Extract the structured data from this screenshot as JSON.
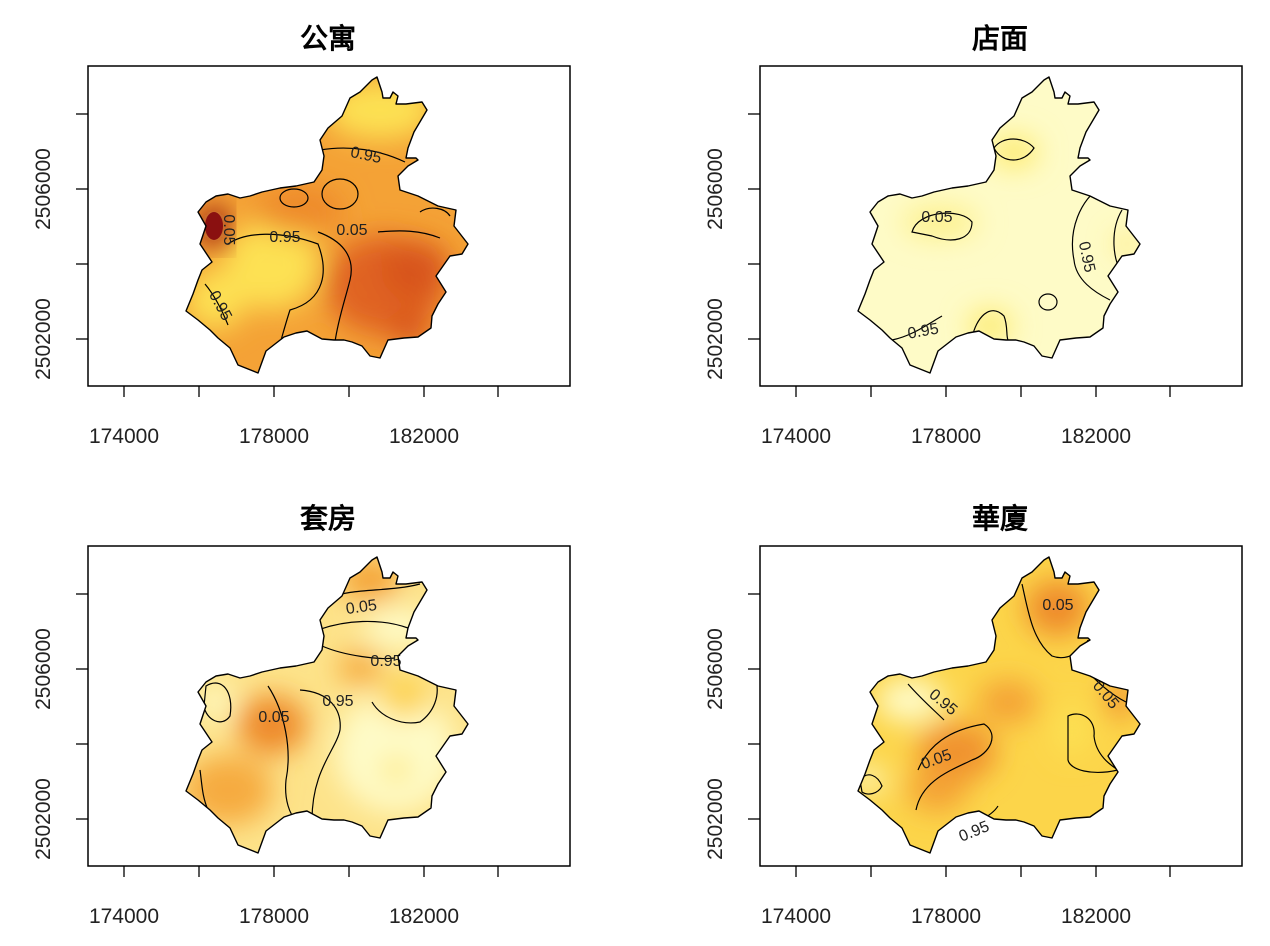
{
  "figure": {
    "panels": [
      {
        "id": "apartment",
        "title": "公寓",
        "x_ticks": [
          "174000",
          "178000",
          "182000"
        ],
        "y_ticks": [
          "2502000",
          "2506000"
        ],
        "base_color": "#f4a236",
        "hotspot_colors": [
          "#fde152",
          "#ee8a2a",
          "#e06324",
          "#d8541f",
          "#8a1010"
        ],
        "contour_labels": [
          "0.95",
          "0.05",
          "0.95",
          "0.05",
          "0.95"
        ]
      },
      {
        "id": "storefront",
        "title": "店面",
        "x_ticks": [
          "174000",
          "178000",
          "182000"
        ],
        "y_ticks": [
          "2502000",
          "2506000"
        ],
        "base_color": "#fefbc7",
        "hotspot_colors": [
          "#fdea6a",
          "#fdf08a",
          "#fdea6a",
          "#fde152"
        ],
        "contour_labels": [
          "0.05",
          "0.95",
          "0.95"
        ]
      },
      {
        "id": "suite",
        "title": "套房",
        "x_ticks": [
          "174000",
          "178000",
          "182000"
        ],
        "y_ticks": [
          "2502000",
          "2506000"
        ],
        "base_color": "#fde38a",
        "hotspot_colors": [
          "#fefbc7",
          "#f4a236",
          "#ee8a2a",
          "#f6ab40",
          "#fdd046",
          "#fde152"
        ],
        "contour_labels": [
          "0.05",
          "0.95",
          "0.95",
          "0.05"
        ]
      },
      {
        "id": "mansion",
        "title": "華廈",
        "x_ticks": [
          "174000",
          "178000",
          "182000"
        ],
        "y_ticks": [
          "2502000",
          "2506000"
        ],
        "base_color": "#fcd54a",
        "hotspot_colors": [
          "#fefbc7",
          "#ee8a2a",
          "#f0922e",
          "#f4a236",
          "#fde152"
        ],
        "contour_labels": [
          "0.05",
          "0.95",
          "0.05",
          "0.95",
          "0.05"
        ]
      }
    ]
  }
}
